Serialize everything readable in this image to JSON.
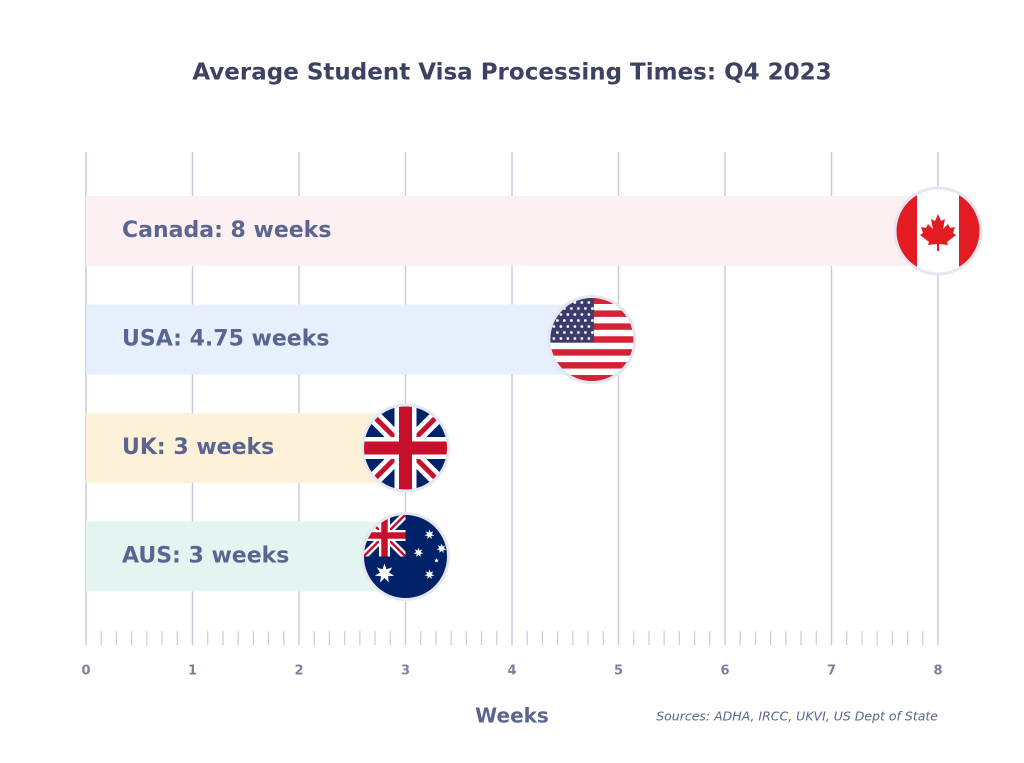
{
  "chart_data": {
    "type": "hbar",
    "title": "Average Student Visa Processing Times: Q4 2023",
    "values": [
      8,
      4.75,
      3,
      3
    ],
    "value_labels": [
      "Canada: 8 weeks",
      "USA: 4.75 weeks",
      "UK: 3 weeks",
      "AUS: 3 weeks"
    ],
    "colors": [
      "#fdf0f3",
      "#e6effc",
      "#fdf1d9",
      "#e4f4f1"
    ],
    "xlim": [
      0,
      8
    ],
    "xticks": [
      0,
      1,
      2,
      3,
      4,
      5,
      6,
      7,
      8
    ],
    "grid": true,
    "xlabel": "Weeks",
    "source": "Sources: ADHA, IRCC, UKVI, US Dept of State"
  }
}
